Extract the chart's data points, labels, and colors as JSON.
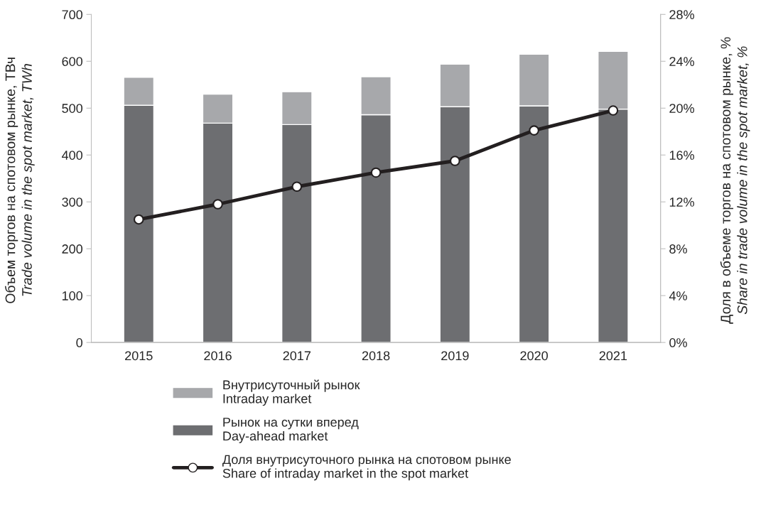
{
  "chart_data": {
    "type": "bar",
    "stacked": true,
    "ylabel": "Объем торгов на спотовом рынке, ТВч\nTrade volume in the spot market, TWh",
    "y2label": "Доля в объеме торгов на спотовом рынке, %\nShare in trade volume in the spot market, %",
    "categories": [
      "2015",
      "2016",
      "2017",
      "2018",
      "2019",
      "2020",
      "2021"
    ],
    "series": [
      {
        "name": "Рынок на сутки вперед\nDay-ahead market",
        "color": "#6d6e71",
        "values": [
          506,
          468,
          465,
          486,
          503,
          505,
          498
        ]
      },
      {
        "name": "Внутрисуточный рынок\nIntraday market",
        "color": "#a7a8ab",
        "values": [
          60,
          62,
          70,
          81,
          91,
          110,
          123
        ]
      },
      {
        "name": "Доля внутрисуточного рынка на спотовом рынке\nShare of intraday market in the spot market",
        "type": "line",
        "axis": "y2",
        "color": "#231f20",
        "marker": "circle",
        "line_style": "solid",
        "values": [
          10.5,
          11.8,
          13.3,
          14.5,
          15.5,
          18.1,
          19.8
        ]
      }
    ],
    "ylim": [
      0,
      700
    ],
    "yticks": [
      0,
      100,
      200,
      300,
      400,
      500,
      600,
      700
    ],
    "y2lim": [
      0,
      28
    ],
    "y2ticks": [
      {
        "value": 0,
        "label": "0%"
      },
      {
        "value": 4,
        "label": "4%"
      },
      {
        "value": 8,
        "label": "8%"
      },
      {
        "value": 12,
        "label": "12%"
      },
      {
        "value": 16,
        "label": "16%"
      },
      {
        "value": 20,
        "label": "20%"
      },
      {
        "value": 24,
        "label": "24%"
      },
      {
        "value": 28,
        "label": "28%"
      }
    ],
    "grid": false,
    "legend": "bottom"
  }
}
